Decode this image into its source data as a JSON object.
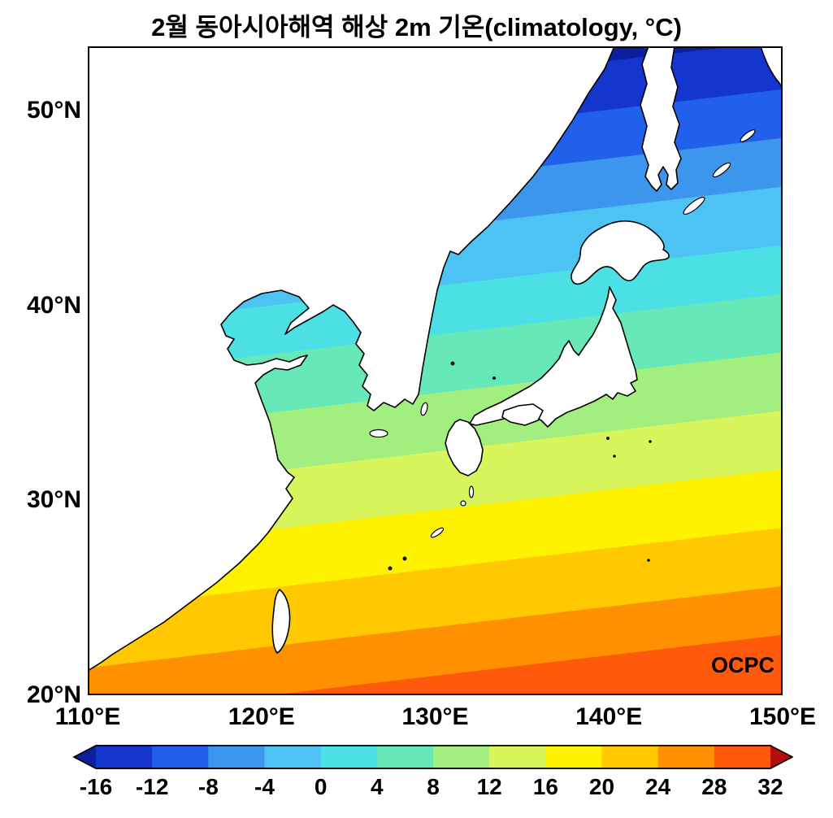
{
  "title": "2월 동아시아해역 해상 2m 기온(climatology, °C)",
  "watermark": "OCPC",
  "axes": {
    "lat": [
      {
        "label": "50°N",
        "value": 50
      },
      {
        "label": "40°N",
        "value": 40
      },
      {
        "label": "30°N",
        "value": 30
      },
      {
        "label": "20°N",
        "value": 20
      }
    ],
    "lon": [
      {
        "label": "110°E",
        "value": 110
      },
      {
        "label": "120°E",
        "value": 120
      },
      {
        "label": "130°E",
        "value": 130
      },
      {
        "label": "140°E",
        "value": 140
      },
      {
        "label": "150°E",
        "value": 150
      }
    ]
  },
  "chart_data": {
    "type": "heatmap",
    "title": "2월 동아시아해역 해상 2m 기온(climatology, °C)",
    "units": "°C",
    "lon_range": [
      110,
      150
    ],
    "lat_range": [
      20,
      53.3
    ],
    "land_color": "#ffffff",
    "coastline_color": "#000000",
    "colorbar": {
      "orientation": "horizontal",
      "ticks": [
        -16,
        -12,
        -8,
        -4,
        0,
        4,
        8,
        12,
        16,
        20,
        24,
        28,
        32
      ],
      "band_colors": [
        "#1535cf",
        "#2060ea",
        "#3d96ee",
        "#4cc3f2",
        "#4ae0e4",
        "#66e8b8",
        "#a2ee7e",
        "#d8f55c",
        "#fff200",
        "#ffc800",
        "#ff9000",
        "#ff5a0c"
      ],
      "under_color": "#0c1f9c",
      "over_color": "#b50d0d"
    },
    "isotherm_lat_at_130E": {
      "-16": 51.5,
      "-12": 49,
      "-8": 46.5,
      "-4": 44,
      "0": 41,
      "4": 38.5,
      "8": 35.5,
      "12": 32.5,
      "16": 29.5,
      "20": 26.5,
      "24": 23.5,
      "28": 21
    }
  }
}
